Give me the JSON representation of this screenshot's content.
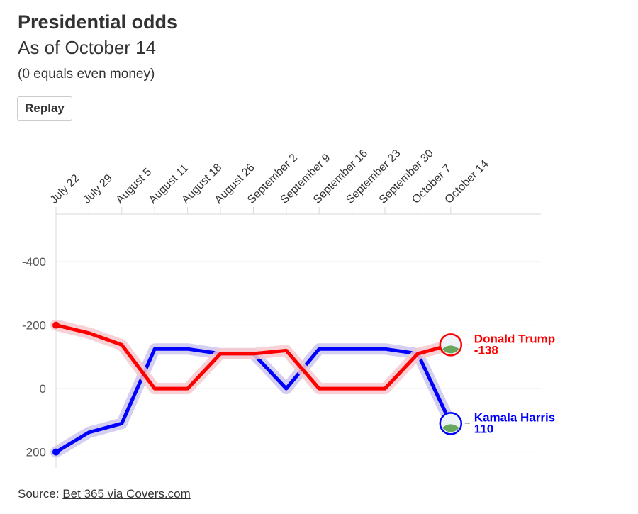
{
  "header": {
    "title": "Presidential odds",
    "subtitle": "As of October 14",
    "note": "(0 equals even money)"
  },
  "controls": {
    "replay_label": "Replay"
  },
  "footer": {
    "source_prefix": "Source: ",
    "source_link": "Bet 365 via Covers.com"
  },
  "colors": {
    "trump": "#ff0000",
    "harris": "#0000ff",
    "trump_glow": "#f6c9cf",
    "harris_glow": "#ccc6ee",
    "grid": "#e6e6e6",
    "text": "#333333"
  },
  "chart_data": {
    "type": "line",
    "categories": [
      "July 22",
      "July 29",
      "August 5",
      "August 11",
      "August 18",
      "August 26",
      "September 2",
      "September 9",
      "September 16",
      "September 23",
      "September 30",
      "October 7",
      "October 14"
    ],
    "yticks": [
      -400,
      -200,
      0,
      200
    ],
    "ylim": [
      -550,
      250
    ],
    "y_inverted": true,
    "grid": true,
    "series": [
      {
        "name": "Donald Trump",
        "color": "#ff0000",
        "values": [
          -200,
          -175,
          -138,
          0,
          0,
          -110,
          -110,
          -120,
          0,
          0,
          0,
          -110,
          -138
        ],
        "end_label_value": "-138"
      },
      {
        "name": "Kamala Harris",
        "color": "#0000ff",
        "values": [
          200,
          138,
          110,
          -125,
          -125,
          -110,
          -110,
          0,
          -125,
          -125,
          -125,
          -110,
          110
        ],
        "end_label_value": "110"
      }
    ]
  }
}
